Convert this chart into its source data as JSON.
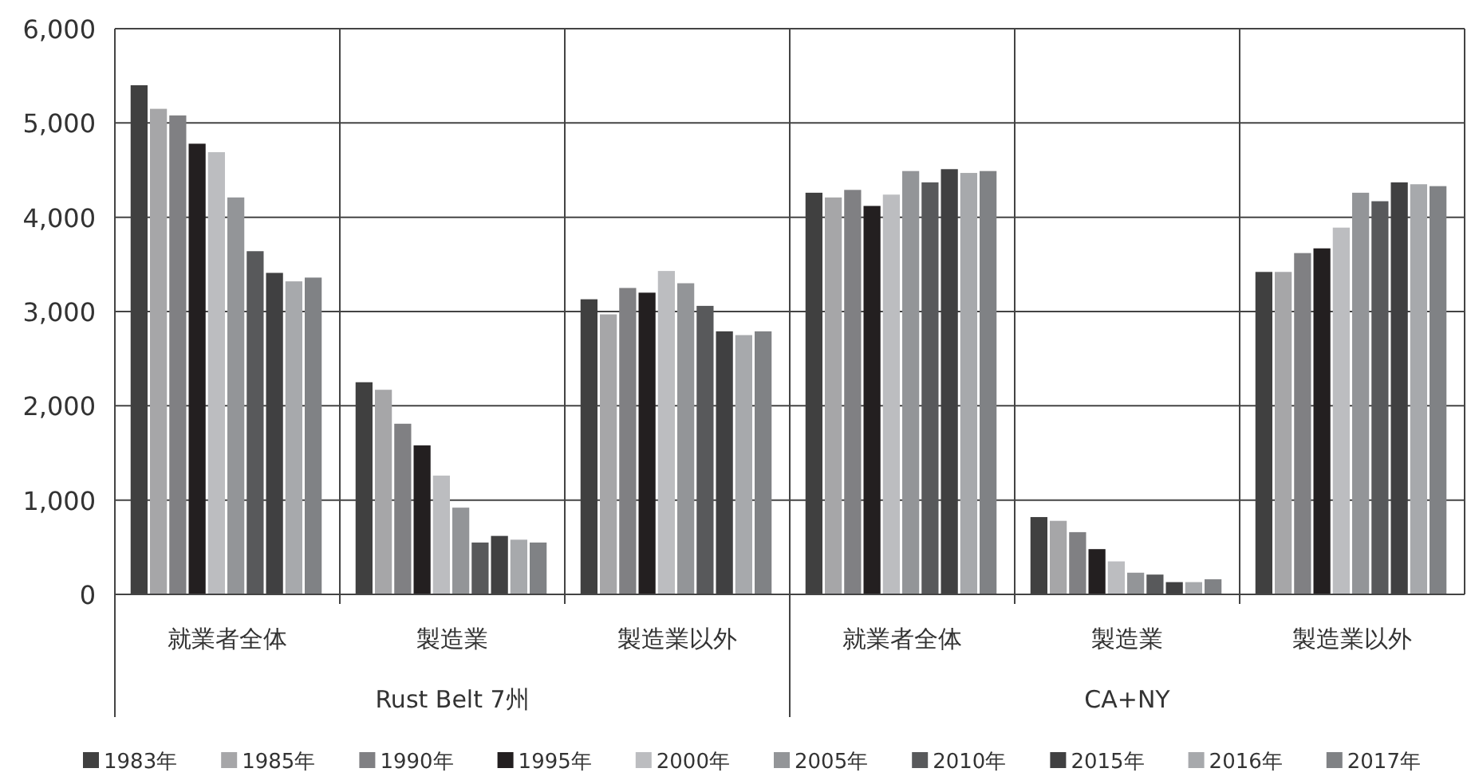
{
  "chart_data": {
    "type": "bar",
    "categories": [
      "就業者全体",
      "製造業",
      "製造業以外",
      "就業者全体",
      "製造業",
      "製造業以外"
    ],
    "annotations": [
      "Rust Belt 7州",
      "CA+NY"
    ],
    "series": [
      {
        "name": "1983年",
        "color": "#404040",
        "values": [
          5400,
          2250,
          3130,
          4260,
          820,
          3420
        ]
      },
      {
        "name": "1985年",
        "color": "#a6a6a8",
        "values": [
          5150,
          2170,
          2970,
          4210,
          780,
          3420
        ]
      },
      {
        "name": "1990年",
        "color": "#808083",
        "values": [
          5080,
          1810,
          3250,
          4290,
          660,
          3620
        ]
      },
      {
        "name": "1995年",
        "color": "#231f20",
        "values": [
          4780,
          1580,
          3200,
          4120,
          480,
          3670
        ]
      },
      {
        "name": "2000年",
        "color": "#bcbdc0",
        "values": [
          4690,
          1260,
          3430,
          4240,
          350,
          3890
        ]
      },
      {
        "name": "2005年",
        "color": "#939598",
        "values": [
          4210,
          920,
          3300,
          4490,
          230,
          4260
        ]
      },
      {
        "name": "2010年",
        "color": "#58595b",
        "values": [
          3640,
          550,
          3060,
          4370,
          210,
          4170
        ]
      },
      {
        "name": "2015年",
        "color": "#404041",
        "values": [
          3410,
          620,
          2790,
          4510,
          130,
          4370
        ]
      },
      {
        "name": "2016年",
        "color": "#a7a9ac",
        "values": [
          3320,
          580,
          2750,
          4470,
          130,
          4350
        ]
      },
      {
        "name": "2017年",
        "color": "#808285",
        "values": [
          3360,
          550,
          2790,
          4490,
          160,
          4330
        ]
      }
    ],
    "ylim": [
      0,
      6000
    ],
    "yticks": [
      {
        "value": 0,
        "label": "0"
      },
      {
        "value": 1000,
        "label": "1,000"
      },
      {
        "value": 2000,
        "label": "2,000"
      },
      {
        "value": 3000,
        "label": "3,000"
      },
      {
        "value": 4000,
        "label": "4,000"
      },
      {
        "value": 5000,
        "label": "5,000"
      },
      {
        "value": 6000,
        "label": "6,000"
      }
    ],
    "grid": true,
    "legend": "bottom"
  }
}
